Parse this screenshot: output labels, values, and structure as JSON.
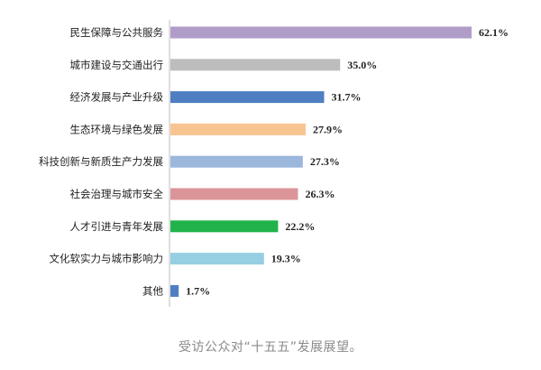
{
  "chart_data": {
    "type": "bar",
    "orientation": "horizontal",
    "categories": [
      "民生保障与公共服务",
      "城市建设与交通出行",
      "经济发展与产业升级",
      "生态环境与绿色发展",
      "科技创新与新质生产力发展",
      "社会治理与城市安全",
      "人才引进与青年发展",
      "文化软实力与城市影响力",
      "其他"
    ],
    "values": [
      62.1,
      35.0,
      31.7,
      27.9,
      27.3,
      26.3,
      22.2,
      19.3,
      1.7
    ],
    "value_labels": [
      "62.1%",
      "35.0%",
      "31.7%",
      "27.9%",
      "27.3%",
      "26.3%",
      "22.2%",
      "19.3%",
      "1.7%"
    ],
    "colors": [
      "#b09cc8",
      "#bdbdbd",
      "#4f7fc2",
      "#f8c592",
      "#9bb7dc",
      "#db9599",
      "#21b34b",
      "#96cfe1",
      "#4f7fc2"
    ],
    "xlim": [
      0,
      62.1
    ],
    "grid": false,
    "legend": "none"
  },
  "caption": "受访公众对“十五五”发展展望。"
}
